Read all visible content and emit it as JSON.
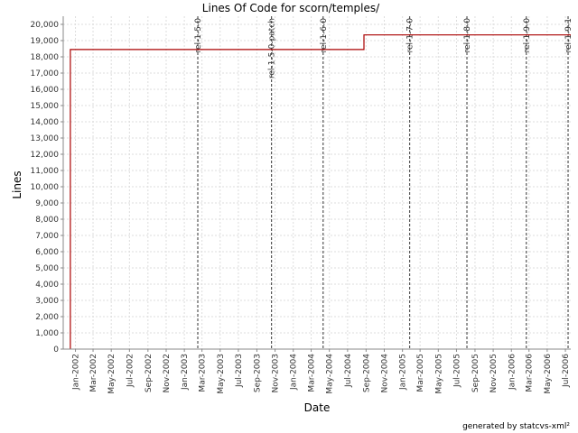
{
  "chart_data": {
    "type": "line",
    "title": "Lines Of Code for scorn/temples/",
    "xlabel": "Date",
    "ylabel": "Lines",
    "x_range": [
      "2001-11-21",
      "2006-07-19"
    ],
    "ylim": [
      0,
      20500
    ],
    "y_ticks": [
      0,
      1000,
      2000,
      3000,
      4000,
      5000,
      6000,
      7000,
      8000,
      9000,
      10000,
      11000,
      12000,
      13000,
      14000,
      15000,
      16000,
      17000,
      18000,
      19000,
      20000
    ],
    "y_tick_labels": [
      "0",
      "1,000",
      "2,000",
      "3,000",
      "4,000",
      "5,000",
      "6,000",
      "7,000",
      "8,000",
      "9,000",
      "10,000",
      "11,000",
      "12,000",
      "13,000",
      "14,000",
      "15,000",
      "16,000",
      "17,000",
      "18,000",
      "19,000",
      "20,000"
    ],
    "x_ticks": [
      "2002-01-01",
      "2002-03-01",
      "2002-05-01",
      "2002-07-01",
      "2002-09-01",
      "2002-11-01",
      "2003-01-01",
      "2003-03-01",
      "2003-05-01",
      "2003-07-01",
      "2003-09-01",
      "2003-11-01",
      "2004-01-01",
      "2004-03-01",
      "2004-05-01",
      "2004-07-01",
      "2004-09-01",
      "2004-11-01",
      "2005-01-01",
      "2005-03-01",
      "2005-05-01",
      "2005-07-01",
      "2005-09-01",
      "2005-11-01",
      "2006-01-01",
      "2006-03-01",
      "2006-05-01",
      "2006-07-01"
    ],
    "x_tick_labels": [
      "Jan-2002",
      "Mar-2002",
      "May-2002",
      "Jul-2002",
      "Sep-2002",
      "Nov-2002",
      "Jan-2003",
      "Mar-2003",
      "May-2003",
      "Jul-2003",
      "Sep-2003",
      "Nov-2003",
      "Jan-2004",
      "Mar-2004",
      "May-2004",
      "Jul-2004",
      "Sep-2004",
      "Nov-2004",
      "Jan-2005",
      "Mar-2005",
      "May-2005",
      "Jul-2005",
      "Sep-2005",
      "Nov-2005",
      "Jan-2006",
      "Mar-2006",
      "May-2006",
      "Jul-2006"
    ],
    "grid": true,
    "series": [
      {
        "color": "#aa0000",
        "step": true,
        "x": [
          "2001-12-15",
          "2001-12-15",
          "2004-08-25",
          "2004-08-25",
          "2006-07-19"
        ],
        "y": [
          0,
          18450,
          18450,
          19350,
          19350
        ]
      }
    ],
    "markers": [
      {
        "label": "rel-1-5-0",
        "date": "2003-02-15"
      },
      {
        "label": "rel-1-5-0-patch",
        "date": "2003-10-20"
      },
      {
        "label": "rel-1-6-0",
        "date": "2004-04-10"
      },
      {
        "label": "rel-1-7-0",
        "date": "2005-01-25"
      },
      {
        "label": "rel-1-8-0",
        "date": "2005-08-05"
      },
      {
        "label": "rel-1-9-0",
        "date": "2006-02-20"
      },
      {
        "label": "rel-1-9-1",
        "date": "2006-07-10"
      }
    ]
  },
  "footer": "generated by statcvs-xml²",
  "colors": {
    "line": "#aa0000",
    "marker": "#555555",
    "grid": "#dddddd",
    "axis": "#888888"
  }
}
